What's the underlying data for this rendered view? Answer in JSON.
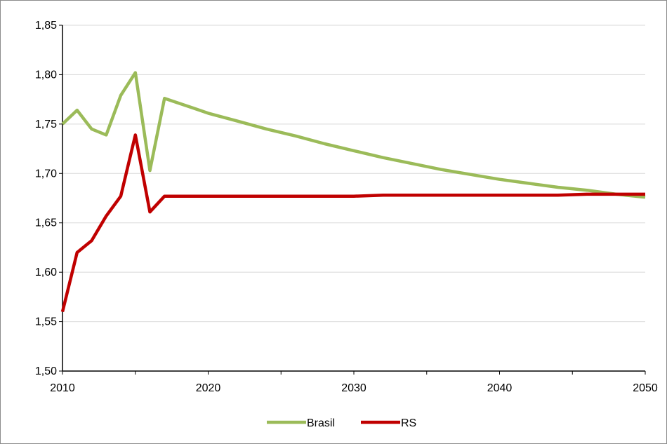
{
  "chart_data": {
    "type": "line",
    "title": "",
    "xlabel": "",
    "ylabel": "",
    "xlim": [
      2010,
      2050
    ],
    "ylim": [
      1.5,
      1.85
    ],
    "x_ticks": [
      2010,
      2020,
      2030,
      2040,
      2050
    ],
    "x_tick_labels": [
      "2010",
      "2020",
      "2030",
      "2040",
      "2050"
    ],
    "y_ticks": [
      1.5,
      1.55,
      1.6,
      1.65,
      1.7,
      1.75,
      1.8,
      1.85
    ],
    "y_tick_labels": [
      "1,50",
      "1,55",
      "1,60",
      "1,65",
      "1,70",
      "1,75",
      "1,80",
      "1,85"
    ],
    "grid": "horizontal",
    "legend": "bottom-center",
    "x": [
      2010,
      2011,
      2012,
      2013,
      2014,
      2015,
      2016,
      2017,
      2018,
      2019,
      2020,
      2022,
      2024,
      2026,
      2028,
      2030,
      2032,
      2034,
      2036,
      2038,
      2040,
      2042,
      2044,
      2046,
      2048,
      2050
    ],
    "series": [
      {
        "name": "Brasil",
        "color": "#9bbb59",
        "values": [
          1.75,
          1.764,
          1.745,
          1.739,
          1.779,
          1.802,
          1.703,
          1.776,
          1.771,
          1.766,
          1.761,
          1.753,
          1.745,
          1.738,
          1.73,
          1.723,
          1.716,
          1.71,
          1.704,
          1.699,
          1.694,
          1.69,
          1.686,
          1.683,
          1.679,
          1.676
        ]
      },
      {
        "name": "RS",
        "color": "#c00000",
        "values": [
          1.56,
          1.62,
          1.632,
          1.657,
          1.677,
          1.739,
          1.661,
          1.677,
          1.677,
          1.677,
          1.677,
          1.677,
          1.677,
          1.677,
          1.677,
          1.677,
          1.678,
          1.678,
          1.678,
          1.678,
          1.678,
          1.678,
          1.678,
          1.679,
          1.679,
          1.679
        ]
      }
    ]
  }
}
